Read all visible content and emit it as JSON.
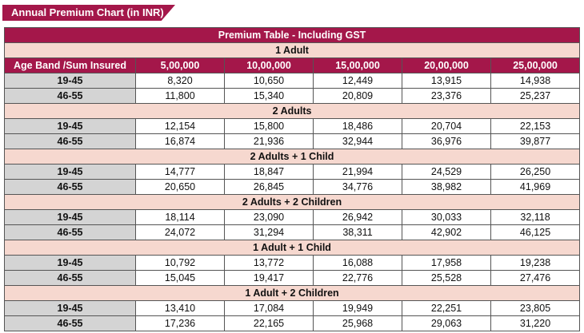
{
  "header": {
    "title": "Annual Premium Chart (in INR)"
  },
  "table": {
    "caption": "Premium Table - Including GST",
    "columns": [
      "Age Band /Sum Insured",
      "5,00,000",
      "10,00,000",
      "15,00,000",
      "20,00,000",
      "25,00,000"
    ],
    "groups": [
      {
        "label": "1 Adult",
        "rows": [
          {
            "age": "19-45",
            "values": [
              "8,320",
              "10,650",
              "12,449",
              "13,915",
              "14,938"
            ]
          },
          {
            "age": "46-55",
            "values": [
              "11,800",
              "15,340",
              "20,809",
              "23,376",
              "25,237"
            ]
          }
        ]
      },
      {
        "label": "2 Adults",
        "rows": [
          {
            "age": "19-45",
            "values": [
              "12,154",
              "15,800",
              "18,486",
              "20,704",
              "22,153"
            ]
          },
          {
            "age": "46-55",
            "values": [
              "16,874",
              "21,936",
              "32,944",
              "36,976",
              "39,877"
            ]
          }
        ]
      },
      {
        "label": "2 Adults + 1 Child",
        "rows": [
          {
            "age": "19-45",
            "values": [
              "14,777",
              "18,847",
              "21,994",
              "24,529",
              "26,250"
            ]
          },
          {
            "age": "46-55",
            "values": [
              "20,650",
              "26,845",
              "34,776",
              "38,982",
              "41,969"
            ]
          }
        ]
      },
      {
        "label": "2 Adults + 2 Children",
        "rows": [
          {
            "age": "19-45",
            "values": [
              "18,114",
              "23,090",
              "26,942",
              "30,033",
              "32,118"
            ]
          },
          {
            "age": "46-55",
            "values": [
              "24,072",
              "31,294",
              "38,311",
              "42,902",
              "46,125"
            ]
          }
        ]
      },
      {
        "label": "1 Adult + 1 Child",
        "rows": [
          {
            "age": "19-45",
            "values": [
              "10,792",
              "13,772",
              "16,088",
              "17,958",
              "19,238"
            ]
          },
          {
            "age": "46-55",
            "values": [
              "15,045",
              "19,417",
              "22,776",
              "25,528",
              "27,476"
            ]
          }
        ]
      },
      {
        "label": "1 Adult + 2 Children",
        "rows": [
          {
            "age": "19-45",
            "values": [
              "13,410",
              "17,084",
              "19,949",
              "22,251",
              "23,805"
            ]
          },
          {
            "age": "46-55",
            "values": [
              "17,236",
              "22,165",
              "25,968",
              "29,063",
              "31,220"
            ]
          }
        ]
      }
    ]
  },
  "colors": {
    "header": "#a4174a",
    "group_row": "#f6d8cf",
    "age_cell": "#d4d4d4"
  }
}
